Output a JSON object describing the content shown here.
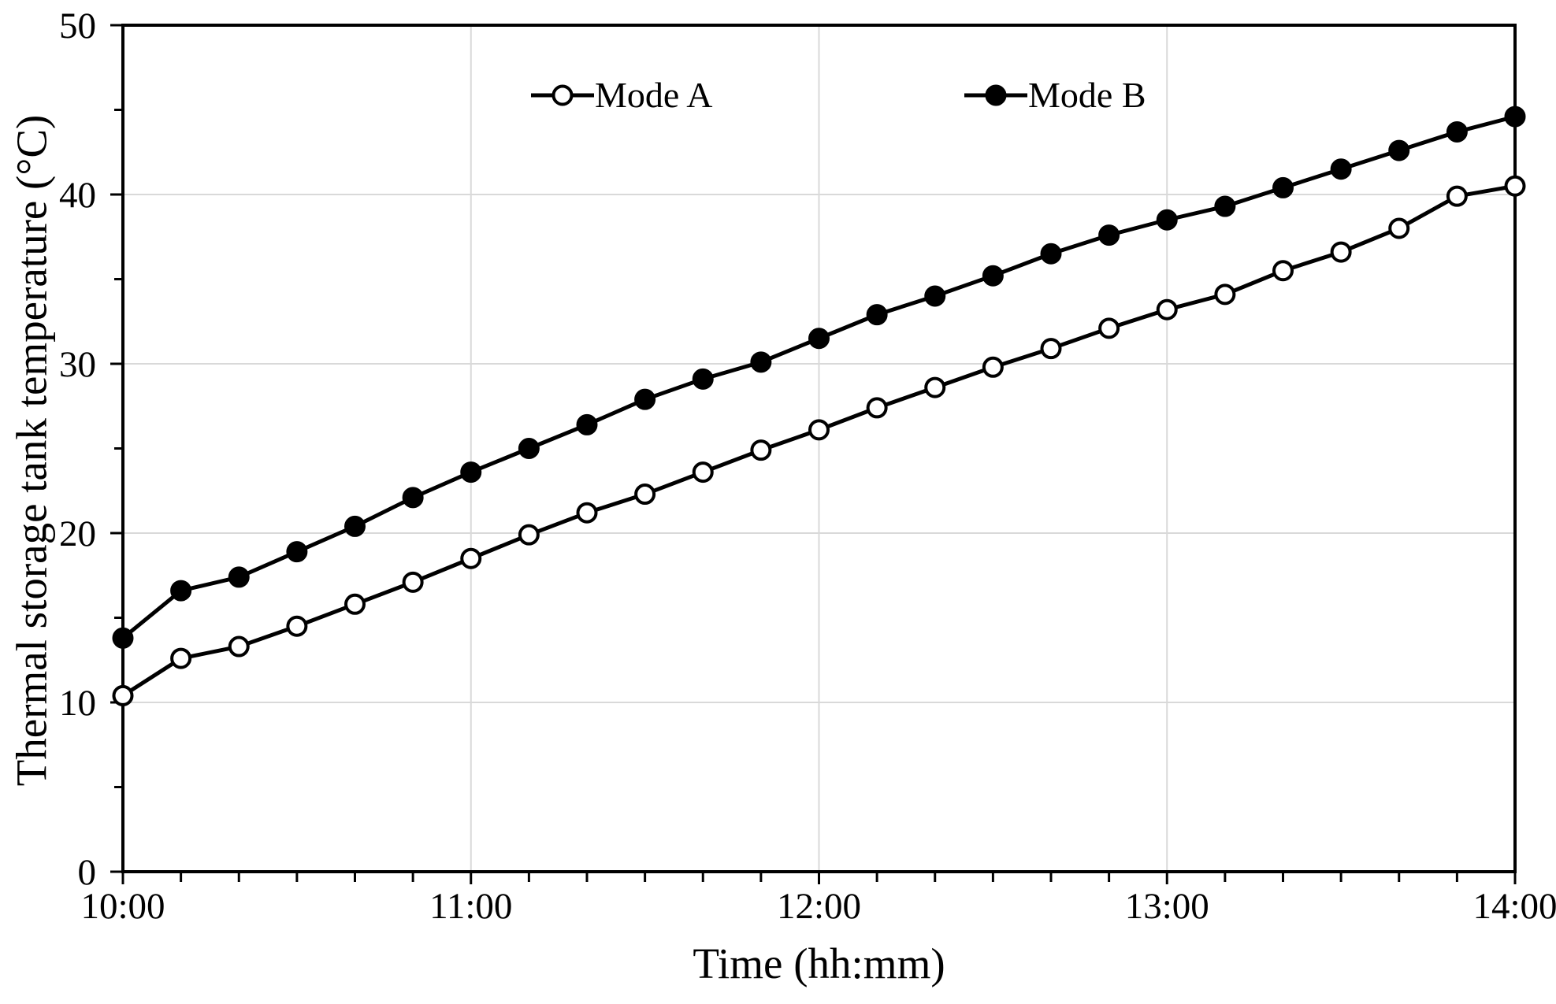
{
  "chart_data": {
    "type": "line",
    "title": "",
    "xlabel": "Time (hh:mm)",
    "ylabel": "Thermal storage tank temperature (°C)",
    "x_tick_labels": [
      "10:00",
      "11:00",
      "12:00",
      "13:00",
      "14:00"
    ],
    "y_tick_labels": [
      "0",
      "10",
      "20",
      "30",
      "40",
      "50"
    ],
    "x_range_minutes": [
      0,
      240
    ],
    "x_major_step_minutes": 60,
    "x_minor_step_minutes": 10,
    "ylim": [
      0,
      50
    ],
    "y_major_step": 10,
    "y_minor_step": 5,
    "grid": {
      "vertical": "every hour",
      "horizontal": "every 10 °C",
      "color": "#d9d9d9"
    },
    "legend": {
      "position": "inside-top"
    },
    "x_minutes": [
      0,
      10,
      20,
      30,
      40,
      50,
      60,
      70,
      80,
      90,
      100,
      110,
      120,
      130,
      140,
      150,
      160,
      170,
      180,
      190,
      200,
      210,
      220,
      230,
      240
    ],
    "series": [
      {
        "name": "Mode A",
        "marker": "open-circle",
        "line_color": "#000000",
        "marker_fill": "#ffffff",
        "values": [
          10.4,
          12.6,
          13.3,
          14.5,
          15.8,
          17.1,
          18.5,
          19.9,
          21.2,
          22.3,
          23.6,
          24.9,
          26.1,
          27.4,
          28.6,
          29.8,
          30.9,
          32.1,
          33.2,
          34.1,
          35.5,
          36.6,
          38.0,
          39.9,
          40.5
        ]
      },
      {
        "name": "Mode B",
        "marker": "filled-circle",
        "line_color": "#000000",
        "marker_fill": "#000000",
        "values": [
          13.8,
          16.6,
          17.4,
          18.9,
          20.4,
          22.1,
          23.6,
          25.0,
          26.4,
          27.9,
          29.1,
          30.1,
          31.5,
          32.9,
          34.0,
          35.2,
          36.5,
          37.6,
          38.5,
          39.3,
          40.4,
          41.5,
          42.6,
          43.7,
          44.6
        ]
      }
    ]
  },
  "colors": {
    "axis": "#000000",
    "text": "#000000",
    "grid": "#d9d9d9",
    "background": "#ffffff"
  }
}
